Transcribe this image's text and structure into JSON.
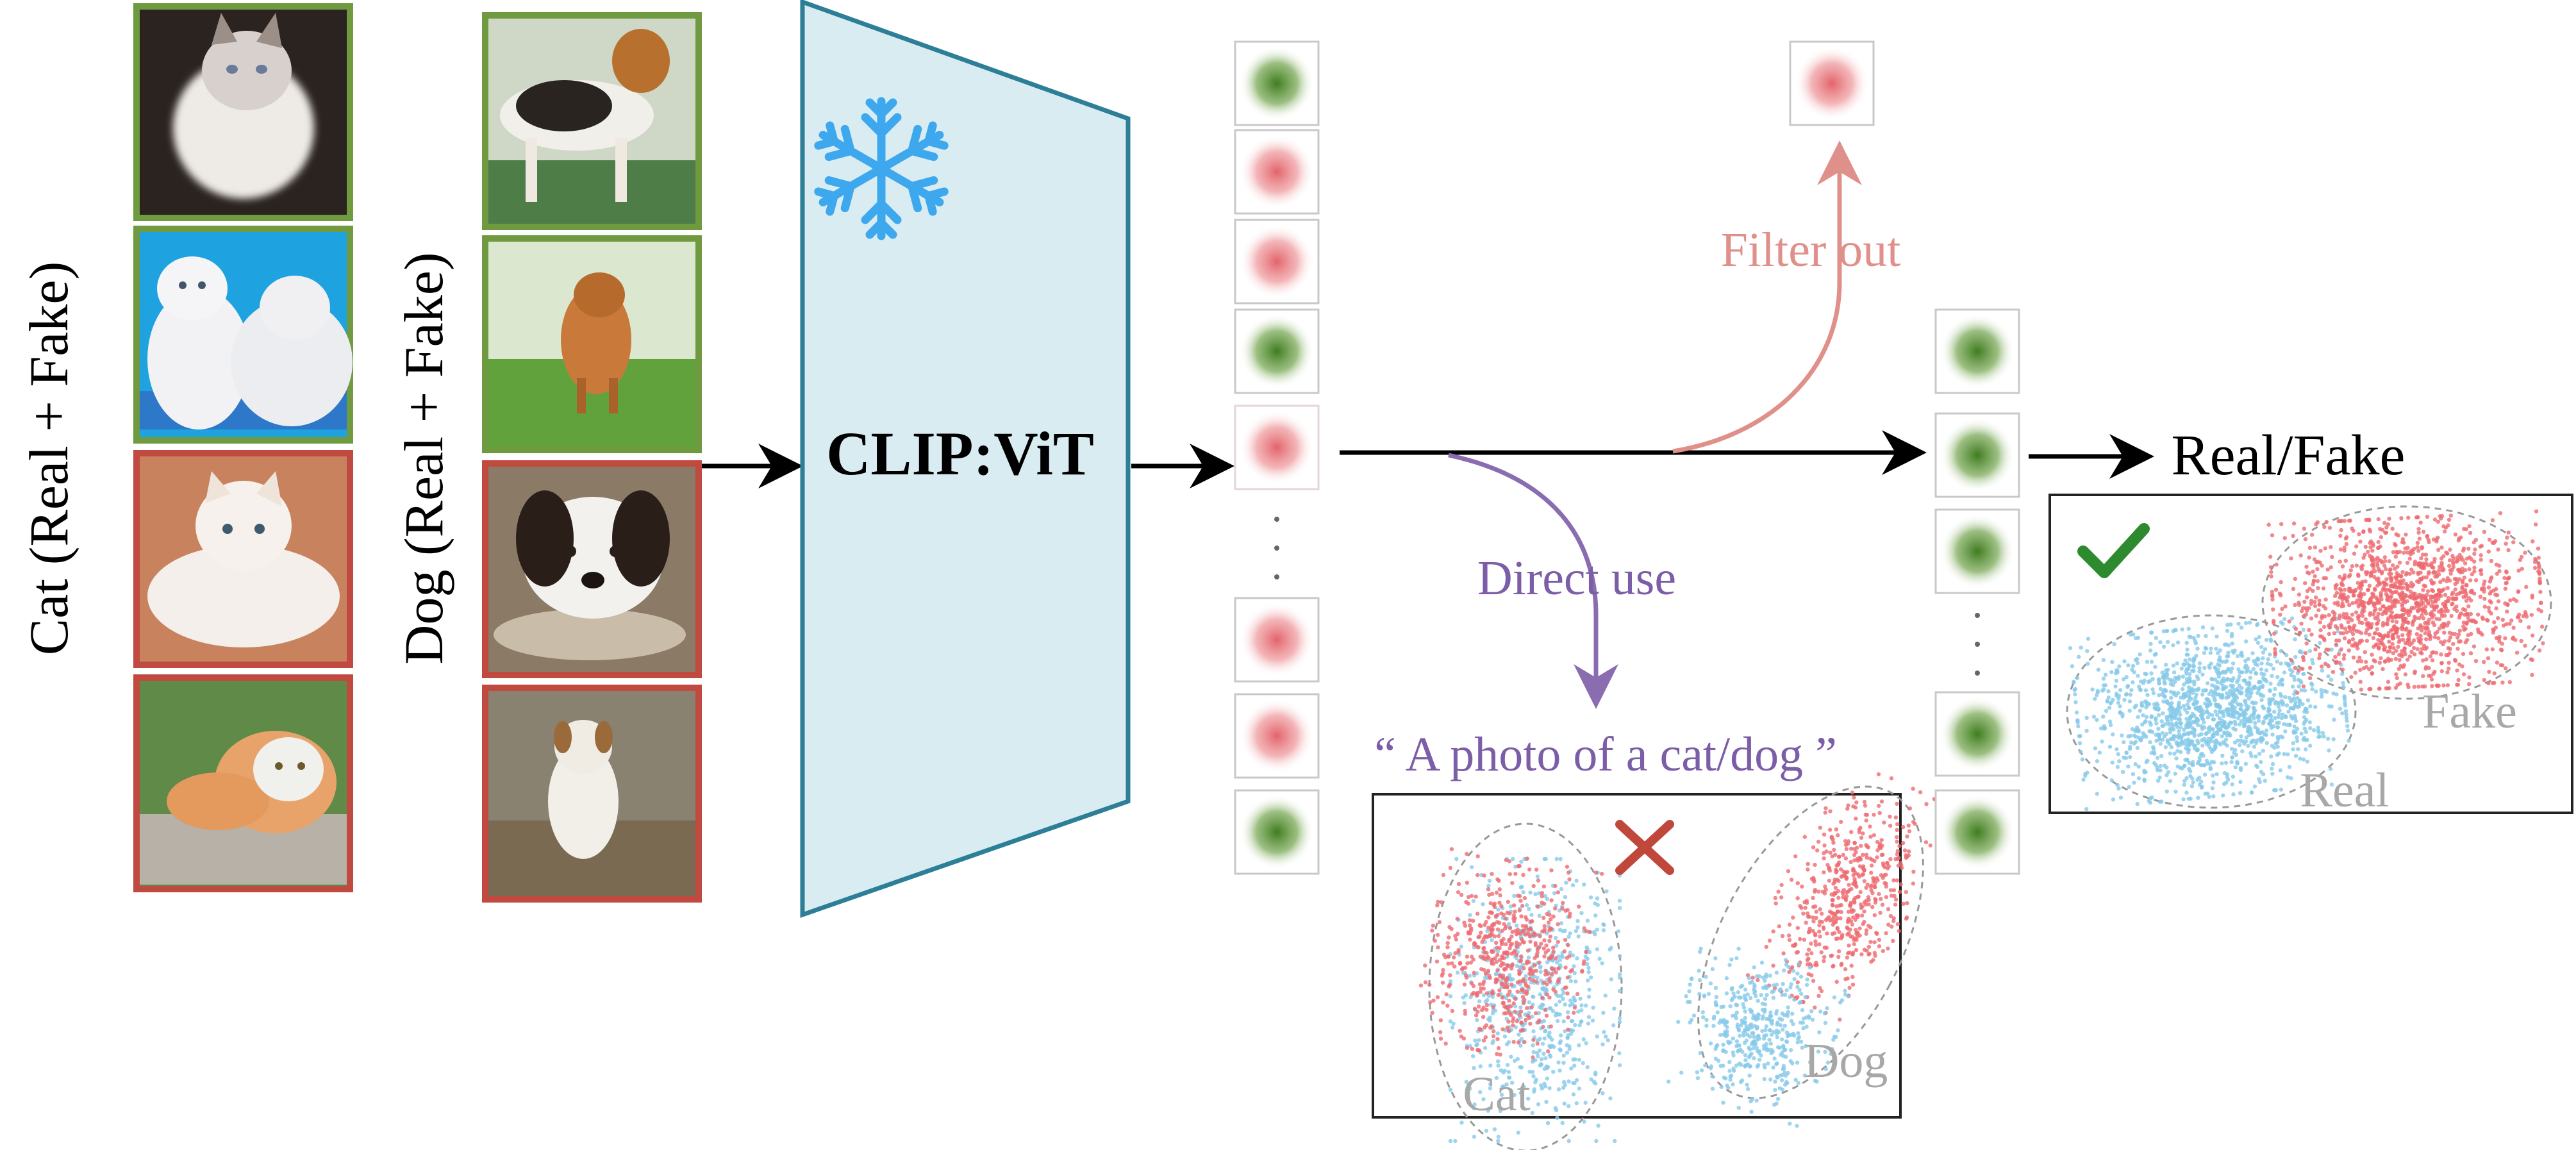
{
  "labels": {
    "cat_group": "Cat (Real + Fake)",
    "dog_group": "Dog (Real + Fake)",
    "model": "CLIP:ViT",
    "filter_out": "Filter out",
    "direct_use": "Direct use",
    "prompt": "“ A photo of a cat/dog ”",
    "output": "Real/Fake",
    "cluster_cat": "Cat",
    "cluster_dog": "Dog",
    "cluster_real": "Real",
    "cluster_fake": "Fake"
  },
  "images": {
    "cats": [
      {
        "subject": "cat",
        "label": "real"
      },
      {
        "subject": "cat",
        "label": "real"
      },
      {
        "subject": "cat",
        "label": "fake"
      },
      {
        "subject": "cat",
        "label": "fake"
      }
    ],
    "dogs": [
      {
        "subject": "dog",
        "label": "real"
      },
      {
        "subject": "dog",
        "label": "real"
      },
      {
        "subject": "dog",
        "label": "fake"
      },
      {
        "subject": "dog",
        "label": "fake"
      }
    ]
  },
  "feature_tokens": [
    "green",
    "red",
    "red",
    "green",
    "red",
    "ellipsis",
    "red",
    "red",
    "green"
  ],
  "filtered_tokens": [
    "red"
  ],
  "kept_tokens": [
    "green",
    "green",
    "green",
    "ellipsis",
    "green",
    "green"
  ],
  "status": {
    "bad_mark": "cross",
    "good_mark": "check"
  },
  "colors": {
    "real_border": "#6f9a3f",
    "fake_border": "#c04a3f",
    "vit_fill": "#d9ecf1",
    "vit_stroke": "#2c7f96",
    "snowflake": "#3da8ee",
    "green_token": "#4e8a2e",
    "red_token": "#e07a7e",
    "filter_arrow": "#e0908a",
    "direct_arrow": "#8a6db0",
    "real_points": "#86c9e8",
    "fake_points": "#ee6a70",
    "cross": "#c0473c",
    "check": "#2e8a2e",
    "cluster_label": "#a8a8a8"
  }
}
